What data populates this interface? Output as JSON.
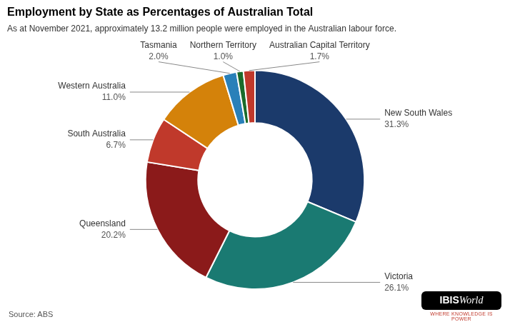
{
  "chart_data": {
    "type": "doughnut",
    "title": "Employment by State as Percentages of Australian Total",
    "subtitle": "As at November 2021, approximately 13.2 million people were employed in the Australian labour force.",
    "annotations": [
      "Source: ABS",
      "IBIS",
      "World",
      "WHERE KNOWLEDGE IS POWER"
    ],
    "categories": [
      "New South Wales",
      "Victoria",
      "Queensland",
      "South Australia",
      "Western Australia",
      "Tasmania",
      "Northern Territory",
      "Australian Capital Territory"
    ],
    "values": [
      31.3,
      26.1,
      20.2,
      6.7,
      11.0,
      2.0,
      1.0,
      1.7
    ],
    "value_labels": [
      "31.3%",
      "26.1%",
      "20.2%",
      "6.7%",
      "11.0%",
      "2.0%",
      "1.0%",
      "1.7%"
    ],
    "colors": [
      "#1b3a6b",
      "#1a7a72",
      "#8b1a1a",
      "#c0392b",
      "#d4820a",
      "#2980b9",
      "#1a6b2a",
      "#c0392b"
    ],
    "data_labels": true
  }
}
